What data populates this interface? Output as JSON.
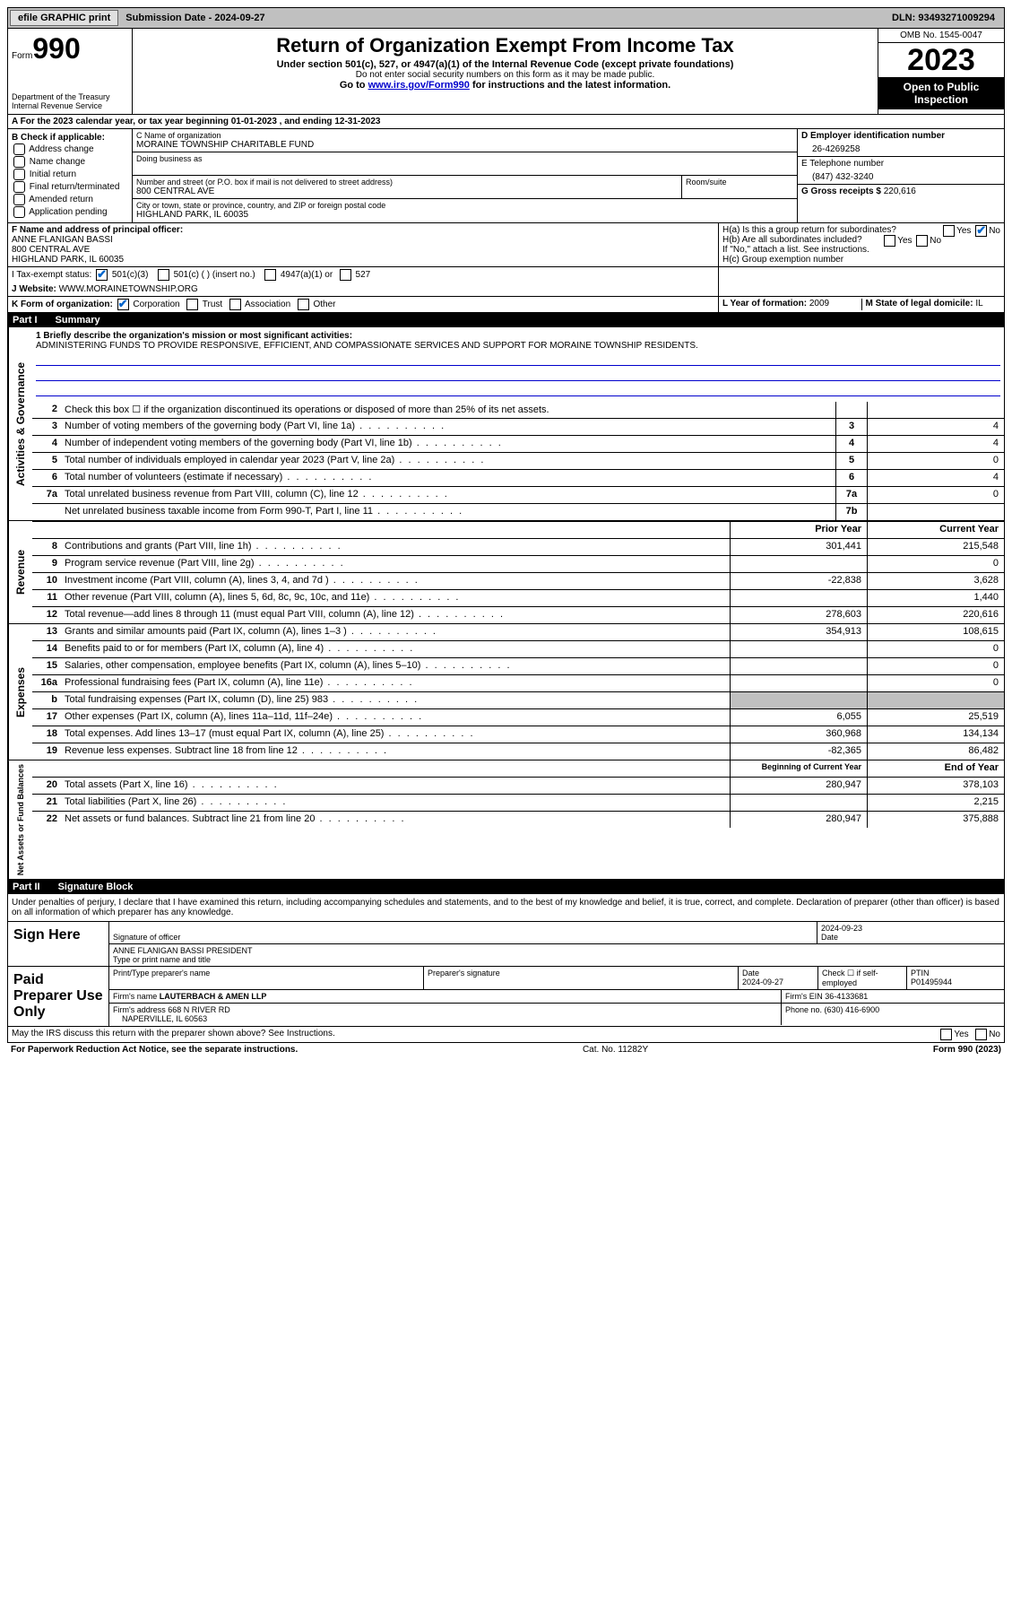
{
  "topbar": {
    "efile": "efile GRAPHIC print",
    "submission_label": "Submission Date - ",
    "submission_date": "2024-09-27",
    "dln_label": "DLN: ",
    "dln": "93493271009294"
  },
  "header": {
    "form_label": "Form",
    "form_num": "990",
    "dept": "Department of the Treasury\nInternal Revenue Service",
    "title": "Return of Organization Exempt From Income Tax",
    "sub1": "Under section 501(c), 527, or 4947(a)(1) of the Internal Revenue Code (except private foundations)",
    "sub2": "Do not enter social security numbers on this form as it may be made public.",
    "sub3_pre": "Go to ",
    "sub3_link": "www.irs.gov/Form990",
    "sub3_post": " for instructions and the latest information.",
    "omb": "OMB No. 1545-0047",
    "year": "2023",
    "inspect": "Open to Public Inspection"
  },
  "line_a": "A For the 2023 calendar year, or tax year beginning 01-01-2023   , and ending 12-31-2023",
  "col_b": {
    "label": "B Check if applicable:",
    "opts": [
      "Address change",
      "Name change",
      "Initial return",
      "Final return/terminated",
      "Amended return",
      "Application pending"
    ]
  },
  "col_c": {
    "name_lbl": "C Name of organization",
    "name": "MORAINE TOWNSHIP CHARITABLE FUND",
    "dba_lbl": "Doing business as",
    "addr_lbl": "Number and street (or P.O. box if mail is not delivered to street address)",
    "addr": "800 CENTRAL AVE",
    "room_lbl": "Room/suite",
    "city_lbl": "City or town, state or province, country, and ZIP or foreign postal code",
    "city": "HIGHLAND PARK, IL  60035"
  },
  "col_de": {
    "ein_lbl": "D Employer identification number",
    "ein": "26-4269258",
    "phone_lbl": "E Telephone number",
    "phone": "(847) 432-3240",
    "gross_lbl": "G Gross receipts $ ",
    "gross": "220,616"
  },
  "row_f": {
    "lbl": "F Name and address of principal officer:",
    "name": "ANNE FLANIGAN BASSI",
    "addr1": "800 CENTRAL AVE",
    "addr2": "HIGHLAND PARK, IL  60035"
  },
  "row_h": {
    "ha": "H(a)  Is this a group return for subordinates?",
    "hb": "H(b)  Are all subordinates included?",
    "hb2": "If \"No,\" attach a list. See instructions.",
    "hc": "H(c)  Group exemption number "
  },
  "row_i": {
    "lbl": "I   Tax-exempt status:",
    "o1": "501(c)(3)",
    "o2": "501(c) (  ) (insert no.)",
    "o3": "4947(a)(1) or",
    "o4": "527"
  },
  "row_j": {
    "lbl": "J   Website: ",
    "val": "WWW.MORAINETOWNSHIP.ORG"
  },
  "row_k": {
    "lbl": "K Form of organization:",
    "o1": "Corporation",
    "o2": "Trust",
    "o3": "Association",
    "o4": "Other"
  },
  "row_l": {
    "lbl": "L Year of formation: ",
    "val": "2009"
  },
  "row_m": {
    "lbl": "M State of legal domicile: ",
    "val": "IL"
  },
  "part1": {
    "label": "Part I",
    "title": "Summary"
  },
  "mission": {
    "lbl": "1   Briefly describe the organization's mission or most significant activities:",
    "text": "ADMINISTERING FUNDS TO PROVIDE RESPONSIVE, EFFICIENT, AND COMPASSIONATE SERVICES AND SUPPORT FOR MORAINE TOWNSHIP RESIDENTS."
  },
  "gov_lines": [
    {
      "n": "2",
      "d": "Check this box ☐ if the organization discontinued its operations or disposed of more than 25% of its net assets.",
      "b": "",
      "v": ""
    },
    {
      "n": "3",
      "d": "Number of voting members of the governing body (Part VI, line 1a)",
      "b": "3",
      "v": "4"
    },
    {
      "n": "4",
      "d": "Number of independent voting members of the governing body (Part VI, line 1b)",
      "b": "4",
      "v": "4"
    },
    {
      "n": "5",
      "d": "Total number of individuals employed in calendar year 2023 (Part V, line 2a)",
      "b": "5",
      "v": "0"
    },
    {
      "n": "6",
      "d": "Total number of volunteers (estimate if necessary)",
      "b": "6",
      "v": "4"
    },
    {
      "n": "7a",
      "d": "Total unrelated business revenue from Part VIII, column (C), line 12",
      "b": "7a",
      "v": "0"
    },
    {
      "n": "",
      "d": "Net unrelated business taxable income from Form 990-T, Part I, line 11",
      "b": "7b",
      "v": ""
    }
  ],
  "rev_hdr": {
    "py": "Prior Year",
    "cy": "Current Year"
  },
  "rev_lines": [
    {
      "n": "8",
      "d": "Contributions and grants (Part VIII, line 1h)",
      "py": "301,441",
      "cy": "215,548"
    },
    {
      "n": "9",
      "d": "Program service revenue (Part VIII, line 2g)",
      "py": "",
      "cy": "0"
    },
    {
      "n": "10",
      "d": "Investment income (Part VIII, column (A), lines 3, 4, and 7d )",
      "py": "-22,838",
      "cy": "3,628"
    },
    {
      "n": "11",
      "d": "Other revenue (Part VIII, column (A), lines 5, 6d, 8c, 9c, 10c, and 11e)",
      "py": "",
      "cy": "1,440"
    },
    {
      "n": "12",
      "d": "Total revenue—add lines 8 through 11 (must equal Part VIII, column (A), line 12)",
      "py": "278,603",
      "cy": "220,616"
    }
  ],
  "exp_lines": [
    {
      "n": "13",
      "d": "Grants and similar amounts paid (Part IX, column (A), lines 1–3 )",
      "py": "354,913",
      "cy": "108,615"
    },
    {
      "n": "14",
      "d": "Benefits paid to or for members (Part IX, column (A), line 4)",
      "py": "",
      "cy": "0"
    },
    {
      "n": "15",
      "d": "Salaries, other compensation, employee benefits (Part IX, column (A), lines 5–10)",
      "py": "",
      "cy": "0"
    },
    {
      "n": "16a",
      "d": "Professional fundraising fees (Part IX, column (A), line 11e)",
      "py": "",
      "cy": "0"
    },
    {
      "n": "b",
      "d": "Total fundraising expenses (Part IX, column (D), line 25) 983",
      "py": "shade",
      "cy": "shade"
    },
    {
      "n": "17",
      "d": "Other expenses (Part IX, column (A), lines 11a–11d, 11f–24e)",
      "py": "6,055",
      "cy": "25,519"
    },
    {
      "n": "18",
      "d": "Total expenses. Add lines 13–17 (must equal Part IX, column (A), line 25)",
      "py": "360,968",
      "cy": "134,134"
    },
    {
      "n": "19",
      "d": "Revenue less expenses. Subtract line 18 from line 12",
      "py": "-82,365",
      "cy": "86,482"
    }
  ],
  "net_hdr": {
    "by": "Beginning of Current Year",
    "ey": "End of Year"
  },
  "net_lines": [
    {
      "n": "20",
      "d": "Total assets (Part X, line 16)",
      "py": "280,947",
      "cy": "378,103"
    },
    {
      "n": "21",
      "d": "Total liabilities (Part X, line 26)",
      "py": "",
      "cy": "2,215"
    },
    {
      "n": "22",
      "d": "Net assets or fund balances. Subtract line 21 from line 20",
      "py": "280,947",
      "cy": "375,888"
    }
  ],
  "part2": {
    "label": "Part II",
    "title": "Signature Block"
  },
  "sig": {
    "decl": "Under penalties of perjury, I declare that I have examined this return, including accompanying schedules and statements, and to the best of my knowledge and belief, it is true, correct, and complete. Declaration of preparer (other than officer) is based on all information of which preparer has any knowledge.",
    "here": "Sign Here",
    "officer_sig": "Signature of officer",
    "officer_date": "2024-09-23",
    "officer_name": "ANNE FLANIGAN BASSI PRESIDENT",
    "officer_type": "Type or print name and title",
    "paid": "Paid Preparer Use Only",
    "prep_name_lbl": "Print/Type preparer's name",
    "prep_sig_lbl": "Preparer's signature",
    "prep_date_lbl": "Date",
    "prep_date": "2024-09-27",
    "prep_check": "Check ☐ if self-employed",
    "ptin_lbl": "PTIN",
    "ptin": "P01495944",
    "firm_name_lbl": "Firm's name   ",
    "firm_name": "LAUTERBACH & AMEN LLP",
    "firm_ein_lbl": "Firm's EIN  ",
    "firm_ein": "36-4133681",
    "firm_addr_lbl": "Firm's address ",
    "firm_addr": "668 N RIVER RD",
    "firm_city": "NAPERVILLE, IL  60563",
    "firm_phone_lbl": "Phone no. ",
    "firm_phone": "(630) 416-6900"
  },
  "discuss": "May the IRS discuss this return with the preparer shown above? See Instructions.",
  "footer": {
    "pra": "For Paperwork Reduction Act Notice, see the separate instructions.",
    "cat": "Cat. No. 11282Y",
    "form": "Form 990 (2023)"
  },
  "side_labels": {
    "gov": "Activities & Governance",
    "rev": "Revenue",
    "exp": "Expenses",
    "net": "Net Assets or Fund Balances"
  },
  "yes": "Yes",
  "no": "No"
}
